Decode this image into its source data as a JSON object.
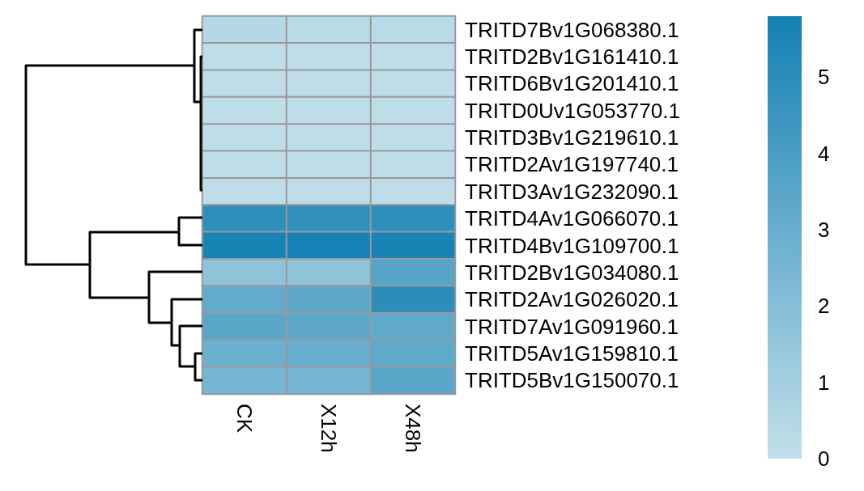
{
  "chart_data": {
    "type": "heatmap",
    "categories": [
      "CK",
      "X12h",
      "X48h"
    ],
    "y_categories": [
      "TRITD7Bv1G068380.1",
      "TRITD2Bv1G161410.1",
      "TRITD6Bv1G201410.1",
      "TRITD0Uv1G053770.1",
      "TRITD3Bv1G219610.1",
      "TRITD2Av1G197740.1",
      "TRITD3Av1G232090.1",
      "TRITD4Av1G066070.1",
      "TRITD4Bv1G109700.1",
      "TRITD2Bv1G034080.1",
      "TRITD2Av1G026020.1",
      "TRITD7Av1G091960.1",
      "TRITD5Av1G159810.1",
      "TRITD5Bv1G150070.1"
    ],
    "cells": [
      [
        0.4,
        0.3,
        0.3
      ],
      [
        0.1,
        0.1,
        0.1
      ],
      [
        0.1,
        0.1,
        0.1
      ],
      [
        0.1,
        0.1,
        0.1
      ],
      [
        0.1,
        0.1,
        0.1
      ],
      [
        0.1,
        0.1,
        0.1
      ],
      [
        0.1,
        0.1,
        0.1
      ],
      [
        4.9,
        4.8,
        4.9
      ],
      [
        5.6,
        5.7,
        5.6
      ],
      [
        1.7,
        1.7,
        3.6
      ],
      [
        3.2,
        3.4,
        5.0
      ],
      [
        3.5,
        3.4,
        3.3
      ],
      [
        2.9,
        3.0,
        3.3
      ],
      [
        2.5,
        2.5,
        3.5
      ]
    ],
    "clim": [
      0,
      5.8
    ],
    "cticks": [
      0,
      1,
      2,
      3,
      4,
      5
    ]
  }
}
